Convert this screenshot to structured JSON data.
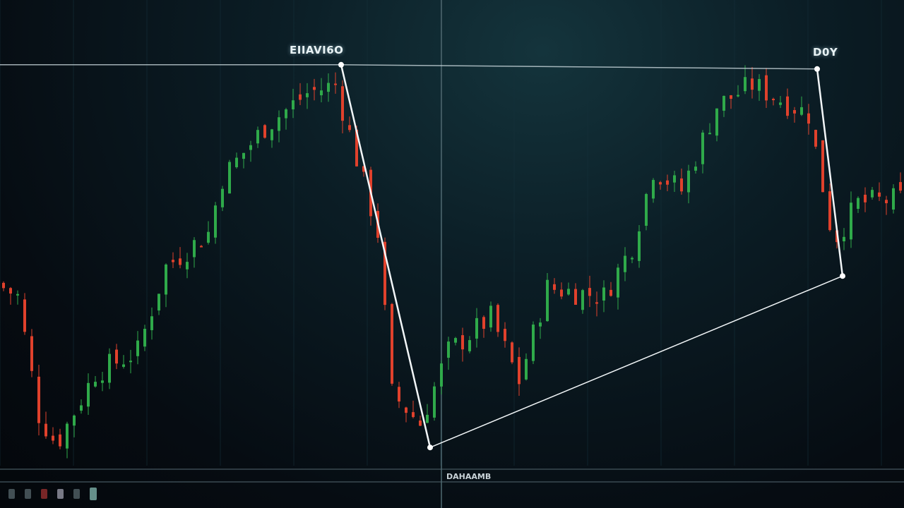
{
  "chart_data": {
    "type": "candlestick",
    "title": "",
    "xlabel": "",
    "ylabel": "",
    "grid": true,
    "colors": {
      "up": "#2faa4a",
      "down": "#e0412c",
      "pattern": "#f2f6f8",
      "background": "#0b1d25"
    },
    "bar_count": 128,
    "ylim": [
      0,
      100
    ],
    "price_path": [
      [
        0,
        43
      ],
      [
        3,
        40
      ],
      [
        6,
        12
      ],
      [
        8.5,
        5
      ],
      [
        14,
        22
      ],
      [
        20,
        27
      ],
      [
        24,
        47
      ],
      [
        30,
        55
      ],
      [
        32,
        68
      ],
      [
        38,
        80
      ],
      [
        44,
        88
      ],
      [
        48,
        90
      ],
      [
        54,
        55
      ],
      [
        56,
        17
      ],
      [
        60,
        10
      ],
      [
        64,
        27
      ],
      [
        70,
        35
      ],
      [
        74,
        20
      ],
      [
        78,
        42
      ],
      [
        86,
        40
      ],
      [
        90,
        52
      ],
      [
        93,
        70
      ],
      [
        97,
        65
      ],
      [
        102,
        85
      ],
      [
        107,
        90
      ],
      [
        115,
        83
      ],
      [
        118.5,
        53
      ],
      [
        122,
        62
      ],
      [
        128,
        63
      ]
    ],
    "pattern_points": [
      [
        48.3,
        94.7
      ],
      [
        60.9,
        4.3
      ],
      [
        119.3,
        44.8
      ],
      [
        115.7,
        93.7
      ]
    ],
    "top_line": [
      [
        0,
        94.7
      ],
      [
        48.3,
        94.7
      ],
      [
        115.7,
        93.7
      ]
    ],
    "annotations": [
      {
        "text": "EIIAVI6O",
        "at_point": 0
      },
      {
        "text": "D0Y",
        "at_point": 3
      }
    ]
  },
  "footer": {
    "panel_label": "DAHAAMB"
  }
}
